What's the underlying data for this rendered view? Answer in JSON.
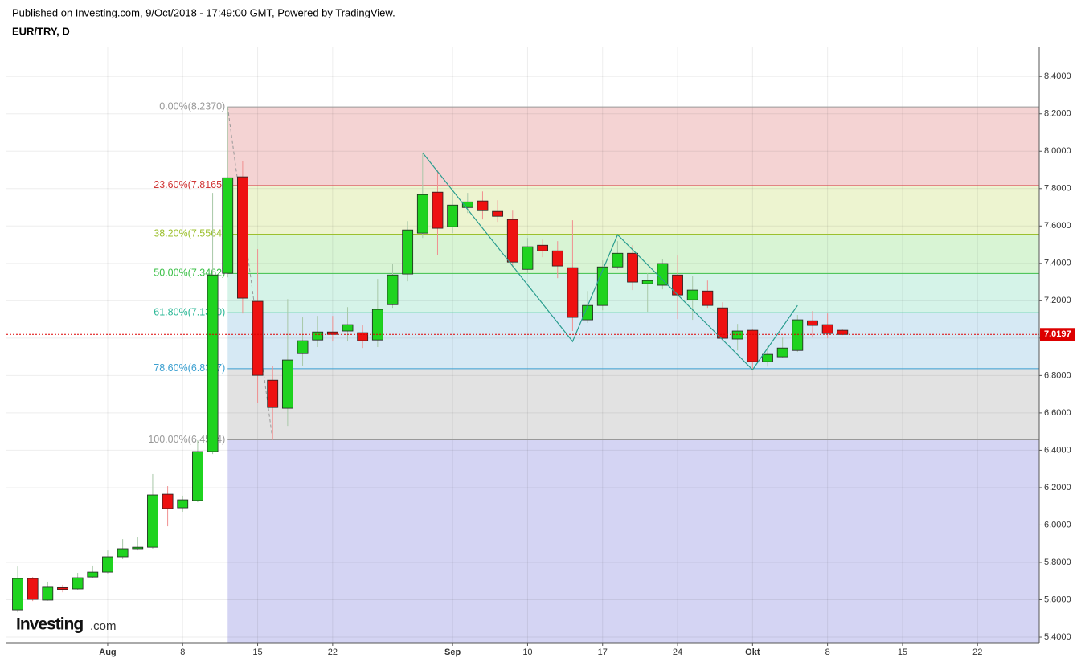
{
  "chart_data": {
    "type": "candlestick",
    "subtitle": "Published on Investing.com, 9/Oct/2018 - 17:49:00 GMT, Powered by TradingView.",
    "title": "EUR/TRY, D",
    "logo": {
      "brand": "Investing",
      "suffix": ".com"
    },
    "categories": [
      null,
      null,
      null,
      null,
      null,
      null,
      "Aug",
      null,
      null,
      null,
      null,
      "8",
      null,
      null,
      null,
      null,
      "15",
      null,
      null,
      null,
      null,
      "22",
      null,
      null,
      null,
      null,
      null,
      null,
      null,
      "Sep",
      null,
      null,
      null,
      null,
      "10",
      null,
      null,
      null,
      null,
      "17",
      null,
      null,
      null,
      null,
      "24",
      null,
      null,
      null,
      null,
      "Okt",
      null,
      null,
      null,
      null,
      "8",
      null,
      null,
      null,
      null,
      "15",
      null,
      null,
      null,
      null,
      "22"
    ],
    "open": [
      5.546,
      5.714,
      5.598,
      5.665,
      5.658,
      5.722,
      5.748,
      5.83,
      5.873,
      5.881,
      6.165,
      6.092,
      6.131,
      6.393,
      7.347,
      7.863,
      7.197,
      6.775,
      6.625,
      6.917,
      6.99,
      7.033,
      7.038,
      7.029,
      6.99,
      7.179,
      7.343,
      7.562,
      7.781,
      7.596,
      7.699,
      7.734,
      7.678,
      7.635,
      7.368,
      7.497,
      7.467,
      7.377,
      7.098,
      7.175,
      7.381,
      7.454,
      7.291,
      7.283,
      7.338,
      7.205,
      7.252,
      7.162,
      6.995,
      7.042,
      6.874,
      6.9,
      6.934,
      7.093,
      7.072,
      7.042,
      null,
      null,
      null,
      null,
      null,
      null,
      null,
      null,
      null
    ],
    "high": [
      5.778,
      5.722,
      5.697,
      5.68,
      5.744,
      5.783,
      5.864,
      5.924,
      5.933,
      6.273,
      6.208,
      6.157,
      6.453,
      7.777,
      8.237,
      7.949,
      7.476,
      6.853,
      7.209,
      7.111,
      7.119,
      7.119,
      7.166,
      7.068,
      7.317,
      7.399,
      7.626,
      7.992,
      7.897,
      7.777,
      7.777,
      7.785,
      7.738,
      7.682,
      7.536,
      7.527,
      7.519,
      7.631,
      7.252,
      7.416,
      7.519,
      7.497,
      7.347,
      7.424,
      7.442,
      7.334,
      7.308,
      7.192,
      7.076,
      7.05,
      6.956,
      7.003,
      7.124,
      7.145,
      7.132,
      7.046,
      null,
      null,
      null,
      null,
      null,
      null,
      null,
      null,
      null
    ],
    "low": [
      5.533,
      5.593,
      5.595,
      5.64,
      5.65,
      5.714,
      5.74,
      5.817,
      5.864,
      5.873,
      5.993,
      6.071,
      6.122,
      6.38,
      7.325,
      7.132,
      6.651,
      6.4554,
      6.53,
      6.853,
      6.952,
      6.982,
      6.982,
      6.947,
      6.952,
      7.162,
      7.304,
      7.536,
      7.446,
      7.562,
      7.669,
      7.635,
      7.622,
      7.381,
      7.347,
      7.433,
      7.321,
      7.038,
      7.081,
      7.149,
      7.368,
      7.257,
      7.141,
      7.261,
      7.102,
      7.098,
      7.162,
      6.982,
      6.934,
      6.831,
      6.848,
      6.896,
      6.926,
      7.003,
      6.999,
      7.016,
      null,
      null,
      null,
      null,
      null,
      null,
      null,
      null,
      null
    ],
    "close": [
      5.714,
      5.602,
      5.667,
      5.655,
      5.718,
      5.748,
      5.83,
      5.873,
      5.881,
      6.161,
      6.088,
      6.135,
      6.393,
      7.338,
      7.858,
      7.214,
      6.801,
      6.629,
      6.883,
      6.986,
      7.033,
      7.02,
      7.072,
      6.986,
      7.154,
      7.338,
      7.579,
      7.768,
      7.588,
      7.712,
      7.729,
      7.682,
      7.652,
      7.407,
      7.489,
      7.467,
      7.386,
      7.111,
      7.175,
      7.381,
      7.454,
      7.3,
      7.308,
      7.399,
      7.231,
      7.257,
      7.175,
      6.999,
      7.038,
      6.874,
      6.913,
      6.947,
      7.098,
      7.068,
      7.025,
      7.0197,
      null,
      null,
      null,
      null,
      null,
      null,
      null,
      null,
      null
    ],
    "up_color": "#1fd31f",
    "down_color": "#ee1111",
    "ylim": [
      5.37,
      8.56
    ],
    "yticks": [
      {
        "value": 5.4,
        "label": "5.4000"
      },
      {
        "value": 5.6,
        "label": "5.6000"
      },
      {
        "value": 5.8,
        "label": "5.8000"
      },
      {
        "value": 6,
        "label": "6.0000"
      },
      {
        "value": 6.2,
        "label": "6.2000"
      },
      {
        "value": 6.4,
        "label": "6.4000"
      },
      {
        "value": 6.6,
        "label": "6.6000"
      },
      {
        "value": 6.8,
        "label": "6.8000"
      },
      {
        "value": 7,
        "label": "7.0000"
      },
      {
        "value": 7.2,
        "label": "7.2000"
      },
      {
        "value": 7.4,
        "label": "7.4000"
      },
      {
        "value": 7.6,
        "label": "7.6000"
      },
      {
        "value": 7.8,
        "label": "7.8000"
      },
      {
        "value": 8,
        "label": "8.0000"
      },
      {
        "value": 8.2,
        "label": "8.2000"
      },
      {
        "value": 8.4,
        "label": "8.4000"
      }
    ],
    "grid": true,
    "last_price": 7.0197,
    "last_price_color": "#dd0000",
    "fib_anchor": {
      "from": {
        "x": 14,
        "y": 8.237
      },
      "to": {
        "x": 17,
        "y": 6.4554
      }
    },
    "fibonacci": [
      {
        "label": "0.00%(8.2370)",
        "value": 8.237,
        "color": "#999999",
        "fill": "#f4d3d3"
      },
      {
        "label": "23.60%(7.8165)",
        "value": 7.8165,
        "color": "#d03636",
        "fill": "#edf4d0"
      },
      {
        "label": "38.20%(7.5564)",
        "value": 7.5564,
        "color": "#9cc02e",
        "fill": "#d8f4d4"
      },
      {
        "label": "50.00%(7.3462)",
        "value": 7.3462,
        "color": "#3cc048",
        "fill": "#d5f3e8"
      },
      {
        "label": "61.80%(7.1360)",
        "value": 7.136,
        "color": "#2db897",
        "fill": "#d6e9f4"
      },
      {
        "label": "78.60%(6.8367)",
        "value": 6.8367,
        "color": "#3a9fd0",
        "fill": "#e2e2e2"
      },
      {
        "label": "100.00%(6.4554)",
        "value": 6.4554,
        "color": "#999999",
        "fill": "#d4d4f3"
      }
    ],
    "zigzag_color": "#2a9d8f",
    "zigzag": [
      {
        "x": 27,
        "y": 7.992
      },
      {
        "x": 37,
        "y": 6.982
      },
      {
        "x": 40,
        "y": 7.553
      },
      {
        "x": 49,
        "y": 6.831
      },
      {
        "x": 52,
        "y": 7.175
      }
    ]
  }
}
